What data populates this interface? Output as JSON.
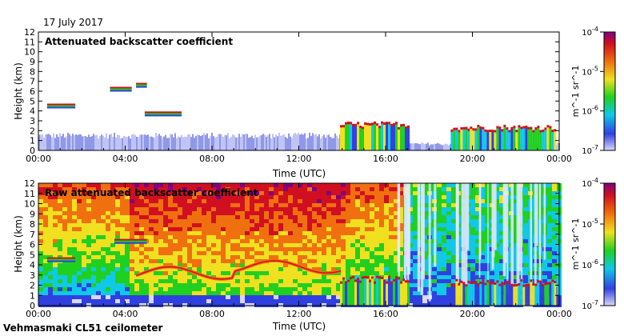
{
  "date": "17 July 2017",
  "instrument": "Vehmasmaki CL51 ceilometer",
  "chart_data": [
    {
      "type": "heatmap",
      "title": "Attenuated backscatter coefficient",
      "xlabel": "Time (UTC)",
      "ylabel": "Height (km)",
      "xticks": [
        "00:00",
        "04:00",
        "08:00",
        "12:00",
        "16:00",
        "20:00",
        "00:00"
      ],
      "xlim_hours": [
        0,
        24
      ],
      "yticks": [
        "0",
        "1",
        "2",
        "3",
        "4",
        "5",
        "6",
        "7",
        "8",
        "9",
        "10",
        "11",
        "12"
      ],
      "ylim": [
        0,
        12
      ],
      "colorbar": {
        "scale": "log",
        "ticks": [
          "10^-7",
          "10^-6",
          "10^-5",
          "10^-4"
        ],
        "unit": "m^-1 sr^-1",
        "colors": [
          "#d8d8f8",
          "#3040e0",
          "#10c8e8",
          "#20d020",
          "#f0e020",
          "#f07010",
          "#d01020",
          "#800080"
        ]
      },
      "features": [
        {
          "kind": "cloud layer",
          "t_start": 0.4,
          "t_end": 1.7,
          "height_km": 4.5
        },
        {
          "kind": "cloud layer",
          "t_start": 3.3,
          "t_end": 4.3,
          "height_km": 6.2
        },
        {
          "kind": "cloud layer",
          "t_start": 4.5,
          "t_end": 5.0,
          "height_km": 6.6
        },
        {
          "kind": "cloud layer",
          "t_start": 4.9,
          "t_end": 6.6,
          "height_km": 3.7
        },
        {
          "kind": "low cloud",
          "t_start": 13.9,
          "t_end": 17.1,
          "height_km": 2.5
        },
        {
          "kind": "low cloud",
          "t_start": 19.0,
          "t_end": 23.8,
          "height_km": 2.2
        }
      ]
    },
    {
      "type": "heatmap",
      "title": "Raw attenuated backscatter coefficient",
      "xlabel": "Time (UTC)",
      "ylabel": "Height (km)",
      "xticks": [
        "00:00",
        "04:00",
        "08:00",
        "12:00",
        "16:00",
        "20:00",
        "00:00"
      ],
      "xlim_hours": [
        0,
        24
      ],
      "yticks": [
        "0",
        "1",
        "2",
        "3",
        "4",
        "5",
        "6",
        "7",
        "8",
        "9",
        "10",
        "11",
        "12"
      ],
      "ylim": [
        0,
        12
      ],
      "colorbar": {
        "scale": "log",
        "ticks": [
          "10^-7",
          "10^-6",
          "10^-5",
          "10^-4"
        ],
        "unit": "m^-1 sr^-1",
        "colors": [
          "#d8d8f8",
          "#3040e0",
          "#10c8e8",
          "#20d020",
          "#f0e020",
          "#f07010",
          "#d01020",
          "#800080"
        ]
      },
      "features": [
        {
          "kind": "boundary layer top",
          "t_start": 4.5,
          "t_end": 14.0,
          "height_km": 3.2
        },
        {
          "kind": "cloud layer",
          "t_start": 0.4,
          "t_end": 1.7,
          "height_km": 4.5
        },
        {
          "kind": "cloud layer",
          "t_start": 3.5,
          "t_end": 5.0,
          "height_km": 6.3
        },
        {
          "kind": "low cloud",
          "t_start": 13.9,
          "t_end": 17.1,
          "height_km": 2.5
        },
        {
          "kind": "low cloud",
          "t_start": 19.0,
          "t_end": 23.8,
          "height_km": 2.2
        }
      ]
    }
  ]
}
